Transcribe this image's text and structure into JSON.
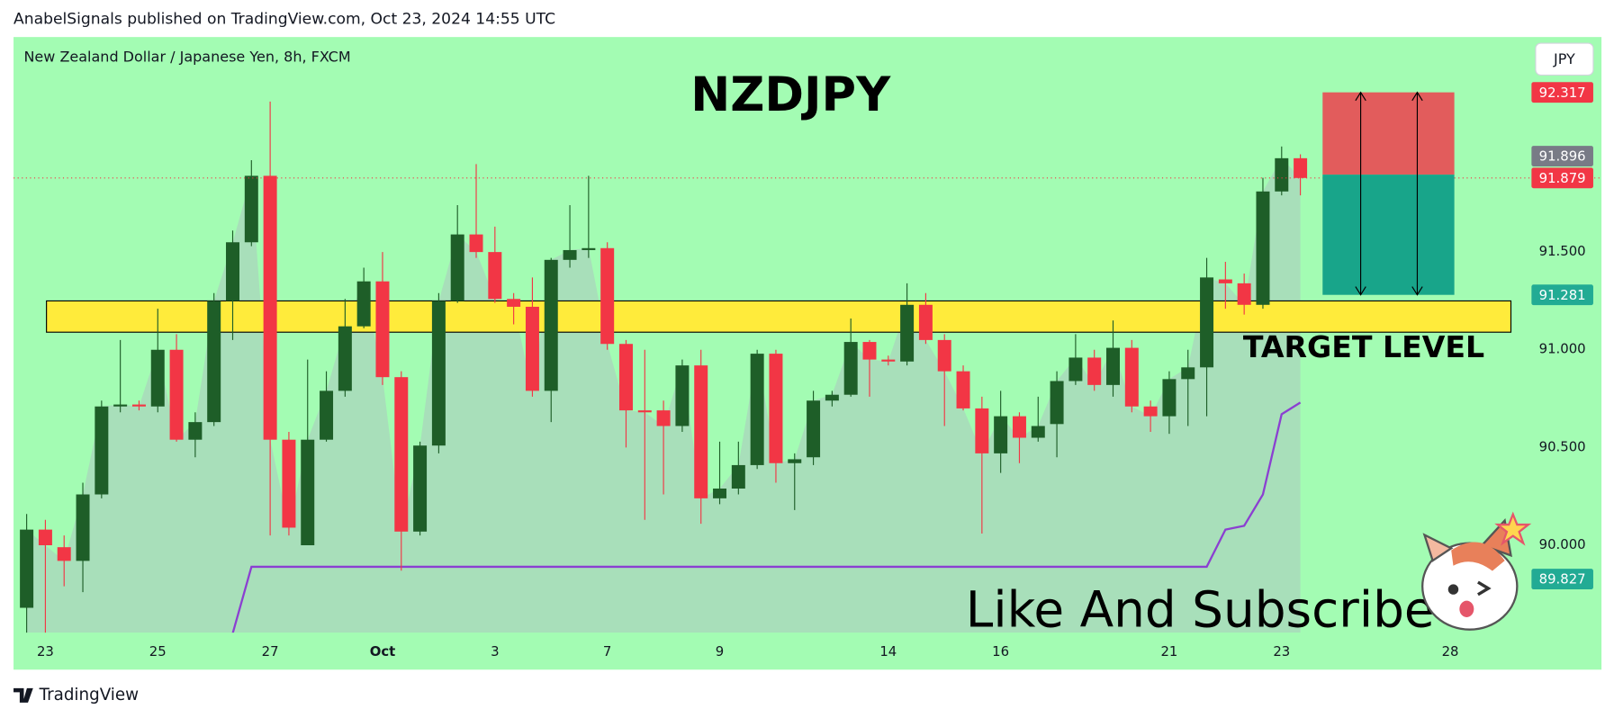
{
  "header": {
    "publisher": "AnabelSignals published on TradingView.com, Oct 23, 2024 14:55 UTC",
    "brand": "TradingView"
  },
  "chart_data": {
    "type": "candlestick",
    "symbol_info": "New Zealand Dollar / Japanese Yen, 8h, FXCM",
    "title": "NZDJPY",
    "currency": "JPY",
    "annotations": {
      "zone_label": "TARGET LEVEL",
      "cta": "Like And Subscribe"
    },
    "up_color": "#1e5e28",
    "down_color": "#f23645",
    "open": [
      89.68,
      90.08,
      89.99,
      89.92,
      90.26,
      90.71,
      90.72,
      90.71,
      91.0,
      90.54,
      90.63,
      91.25,
      91.55,
      91.89,
      90.54,
      90.0,
      90.54,
      90.79,
      91.12,
      91.35,
      90.86,
      90.07,
      90.51,
      91.25,
      91.59,
      91.5,
      91.26,
      91.22,
      90.79,
      91.46,
      91.51,
      91.52,
      91.03,
      90.69,
      90.69,
      90.61,
      90.92,
      90.24,
      90.29,
      90.41,
      90.98,
      90.42,
      90.45,
      90.74,
      90.77,
      91.04,
      90.95,
      90.94,
      91.23,
      91.05,
      90.89,
      90.7,
      90.47,
      90.66,
      90.55,
      90.62,
      90.84,
      90.96,
      90.82,
      91.01,
      90.71,
      90.66,
      90.85,
      90.91,
      91.36,
      91.34,
      91.23,
      91.81,
      91.98
    ],
    "high": [
      90.16,
      90.13,
      90.05,
      90.32,
      90.74,
      91.05,
      90.74,
      91.21,
      91.08,
      90.68,
      91.29,
      91.61,
      91.97,
      92.27,
      90.58,
      90.95,
      90.89,
      91.26,
      91.42,
      91.5,
      90.89,
      90.53,
      91.29,
      91.74,
      91.95,
      91.63,
      91.29,
      91.37,
      91.47,
      91.74,
      91.89,
      91.55,
      91.05,
      91.0,
      90.74,
      90.95,
      91.0,
      90.53,
      90.53,
      91.0,
      91.0,
      90.47,
      90.79,
      90.79,
      91.16,
      91.05,
      90.97,
      91.34,
      91.29,
      91.08,
      90.92,
      90.76,
      90.79,
      90.68,
      90.76,
      90.89,
      91.08,
      91.0,
      91.15,
      91.05,
      90.74,
      90.89,
      91.0,
      91.47,
      91.45,
      91.39,
      91.88,
      92.04,
      92.0
    ],
    "low": [
      89.55,
      89.55,
      89.79,
      89.76,
      90.24,
      90.68,
      90.69,
      90.68,
      90.53,
      90.45,
      90.61,
      91.05,
      91.53,
      90.05,
      90.05,
      90.0,
      90.53,
      90.76,
      91.11,
      90.82,
      89.87,
      90.05,
      90.47,
      91.24,
      91.47,
      91.24,
      91.13,
      90.76,
      90.63,
      91.42,
      91.47,
      91.0,
      90.5,
      90.13,
      90.26,
      90.58,
      90.11,
      90.21,
      90.26,
      90.39,
      90.32,
      90.18,
      90.41,
      90.71,
      90.76,
      90.76,
      90.92,
      90.92,
      91.03,
      90.61,
      90.69,
      90.06,
      90.37,
      90.42,
      90.53,
      90.45,
      90.82,
      90.79,
      90.76,
      90.68,
      90.58,
      90.57,
      90.61,
      90.66,
      91.21,
      91.18,
      91.21,
      91.79,
      91.79
    ],
    "close": [
      90.08,
      90.0,
      89.92,
      90.26,
      90.71,
      90.72,
      90.71,
      91.0,
      90.54,
      90.63,
      91.25,
      91.55,
      91.89,
      90.54,
      90.09,
      90.54,
      90.79,
      91.12,
      91.35,
      90.86,
      90.07,
      90.51,
      91.25,
      91.59,
      91.5,
      91.26,
      91.22,
      90.79,
      91.46,
      91.51,
      91.52,
      91.03,
      90.69,
      90.68,
      90.61,
      90.92,
      90.24,
      90.29,
      90.41,
      90.98,
      90.42,
      90.44,
      90.74,
      90.77,
      91.04,
      90.95,
      90.94,
      91.23,
      91.05,
      90.89,
      90.7,
      90.47,
      90.66,
      90.55,
      90.61,
      90.84,
      90.96,
      90.82,
      91.01,
      90.71,
      90.66,
      90.85,
      90.91,
      91.37,
      91.34,
      91.23,
      91.81,
      91.98,
      91.879
    ],
    "trail": {
      "color": "#8b3fd1",
      "values": [
        null,
        null,
        null,
        null,
        null,
        null,
        null,
        null,
        null,
        null,
        null,
        89.55,
        89.89,
        89.89,
        89.89,
        89.89,
        89.89,
        89.89,
        89.89,
        89.89,
        89.89,
        89.89,
        89.89,
        89.89,
        89.89,
        89.89,
        89.89,
        89.89,
        89.89,
        89.89,
        89.89,
        89.89,
        89.89,
        89.89,
        89.89,
        89.89,
        89.89,
        89.89,
        89.89,
        89.89,
        89.89,
        89.89,
        89.89,
        89.89,
        89.89,
        89.89,
        89.89,
        89.89,
        89.89,
        89.89,
        89.89,
        89.89,
        89.89,
        89.89,
        89.89,
        89.89,
        89.89,
        89.89,
        89.89,
        89.89,
        89.89,
        89.89,
        89.89,
        89.89,
        90.08,
        90.1,
        90.26,
        90.67,
        90.73
      ]
    },
    "area_color": "#a9d9bb",
    "zone": {
      "from": 91.09,
      "to": 91.25,
      "color": "#ffeb3b"
    },
    "position": {
      "stop": 92.317,
      "entry": 91.896,
      "target": 91.281,
      "stop_color": "#e25c5c",
      "target_color": "#18a58a"
    },
    "price_labels": [
      {
        "value": 91.879,
        "color": "#f23645"
      },
      {
        "value": 92.317,
        "color": "#f23645"
      },
      {
        "value": 91.896,
        "color": "#787b86"
      },
      {
        "value": 91.281,
        "color": "#22ab94"
      },
      {
        "value": 89.827,
        "color": "#22ab94"
      }
    ],
    "last_price_line": 91.879,
    "ylim": [
      89.553,
      92.6
    ],
    "yticks": [
      {
        "value": 90,
        "label": "90.000"
      },
      {
        "value": 90.5,
        "label": "90.500"
      },
      {
        "value": 91,
        "label": "91.000"
      },
      {
        "value": 91.5,
        "label": "91.500"
      }
    ],
    "xlim": [
      -0.7,
      79.9
    ],
    "xticks": [
      {
        "value": 1,
        "label": "23"
      },
      {
        "value": 7,
        "label": "25"
      },
      {
        "value": 13,
        "label": "27"
      },
      {
        "value": 19,
        "label": "Oct"
      },
      {
        "value": 25,
        "label": "3"
      },
      {
        "value": 31,
        "label": "7"
      },
      {
        "value": 37,
        "label": "9"
      },
      {
        "value": 46,
        "label": "14"
      },
      {
        "value": 52,
        "label": "16"
      },
      {
        "value": 61,
        "label": "21"
      },
      {
        "value": 67,
        "label": "23"
      },
      {
        "value": 76,
        "label": "28"
      }
    ]
  }
}
